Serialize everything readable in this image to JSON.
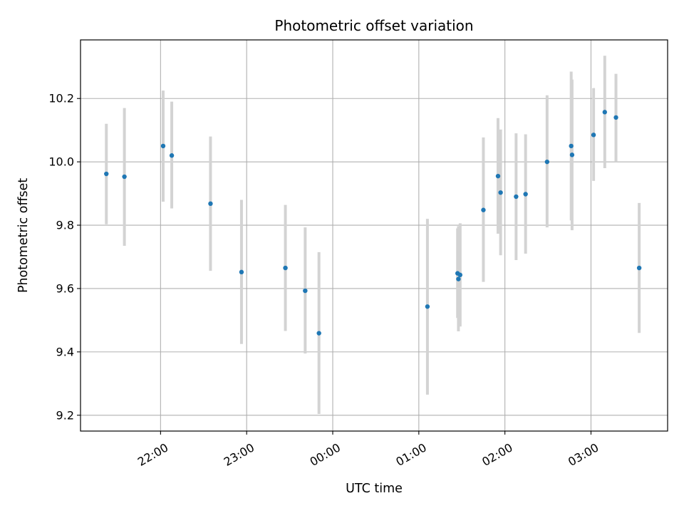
{
  "chart_data": {
    "type": "scatter",
    "title": "Photometric offset variation",
    "xlabel": "UTC time",
    "ylabel": "Photometric offset",
    "x_unit": "UTC time (hours past midnight; negative values fall on the previous evening)",
    "xlim": [
      -2.93,
      3.89
    ],
    "ylim": [
      9.15,
      10.385
    ],
    "grid": true,
    "x_ticks": [
      {
        "value": -2.0,
        "label": "22:00"
      },
      {
        "value": -1.0,
        "label": "23:00"
      },
      {
        "value": 0.0,
        "label": "00:00"
      },
      {
        "value": 1.0,
        "label": "01:00"
      },
      {
        "value": 2.0,
        "label": "02:00"
      },
      {
        "value": 3.0,
        "label": "03:00"
      }
    ],
    "y_ticks": [
      {
        "value": 9.2,
        "label": "9.2"
      },
      {
        "value": 9.4,
        "label": "9.4"
      },
      {
        "value": 9.6,
        "label": "9.6"
      },
      {
        "value": 9.8,
        "label": "9.8"
      },
      {
        "value": 10.0,
        "label": "10.0"
      },
      {
        "value": 10.2,
        "label": "10.2"
      }
    ],
    "colors": {
      "marker": "#1f77b4",
      "errorbar": "#d3d3d3",
      "grid": "#b0b0b0",
      "axes": "#000000"
    },
    "points": [
      {
        "x": -2.63,
        "y": 9.962,
        "lo": 9.803,
        "hi": 10.12
      },
      {
        "x": -2.42,
        "y": 9.953,
        "lo": 9.735,
        "hi": 10.17
      },
      {
        "x": -1.97,
        "y": 10.05,
        "lo": 9.874,
        "hi": 10.225
      },
      {
        "x": -1.87,
        "y": 10.02,
        "lo": 9.853,
        "hi": 10.19
      },
      {
        "x": -1.42,
        "y": 9.868,
        "lo": 9.656,
        "hi": 10.08
      },
      {
        "x": -1.06,
        "y": 9.652,
        "lo": 9.425,
        "hi": 9.88
      },
      {
        "x": -0.55,
        "y": 9.665,
        "lo": 9.466,
        "hi": 9.864
      },
      {
        "x": -0.32,
        "y": 9.593,
        "lo": 9.395,
        "hi": 9.793
      },
      {
        "x": -0.16,
        "y": 9.459,
        "lo": 9.204,
        "hi": 9.715
      },
      {
        "x": 1.1,
        "y": 9.543,
        "lo": 9.265,
        "hi": 9.82
      },
      {
        "x": 1.45,
        "y": 9.648,
        "lo": 9.507,
        "hi": 9.79
      },
      {
        "x": 1.46,
        "y": 9.63,
        "lo": 9.465,
        "hi": 9.797
      },
      {
        "x": 1.48,
        "y": 9.643,
        "lo": 9.48,
        "hi": 9.806
      },
      {
        "x": 1.75,
        "y": 9.848,
        "lo": 9.621,
        "hi": 10.077
      },
      {
        "x": 1.92,
        "y": 9.955,
        "lo": 9.773,
        "hi": 10.138
      },
      {
        "x": 1.95,
        "y": 9.903,
        "lo": 9.705,
        "hi": 10.102
      },
      {
        "x": 2.13,
        "y": 9.89,
        "lo": 9.69,
        "hi": 10.09
      },
      {
        "x": 2.24,
        "y": 9.898,
        "lo": 9.71,
        "hi": 10.087
      },
      {
        "x": 2.49,
        "y": 10.0,
        "lo": 9.793,
        "hi": 10.21
      },
      {
        "x": 2.77,
        "y": 10.05,
        "lo": 9.815,
        "hi": 10.285
      },
      {
        "x": 2.78,
        "y": 10.022,
        "lo": 9.784,
        "hi": 10.26
      },
      {
        "x": 3.03,
        "y": 10.085,
        "lo": 9.94,
        "hi": 10.233
      },
      {
        "x": 3.16,
        "y": 10.157,
        "lo": 9.98,
        "hi": 10.335
      },
      {
        "x": 3.29,
        "y": 10.14,
        "lo": 10.0,
        "hi": 10.278
      },
      {
        "x": 3.56,
        "y": 9.665,
        "lo": 9.46,
        "hi": 9.87
      }
    ]
  }
}
